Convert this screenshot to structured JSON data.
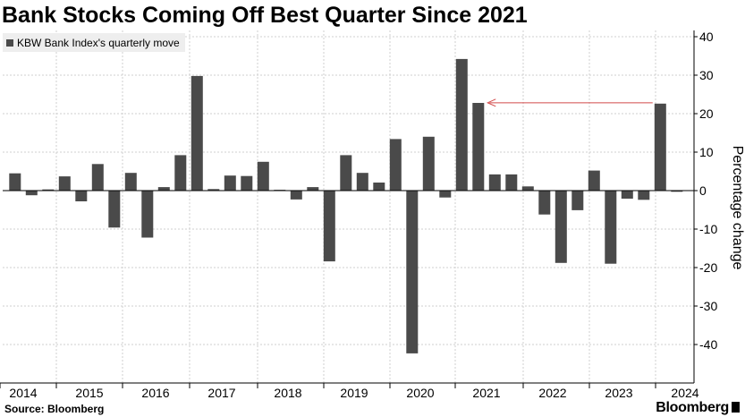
{
  "title": "Bank Stocks Coming Off Best Quarter Since 2021",
  "source": "Source: Bloomberg",
  "brand": "Bloomberg",
  "colors": {
    "bar": "#4a4a4a",
    "grid": "#cfcfcf",
    "axis": "#000000",
    "annotation_arrow": "#d24a4a",
    "legend_bg": "#eeeeee"
  },
  "chart_data": {
    "type": "bar",
    "ylabel": "Percentage change",
    "y_axis_side": "right",
    "ylim": [
      -45,
      42
    ],
    "yticks": [
      40,
      30,
      20,
      10,
      0,
      -10,
      -20,
      -30,
      -40
    ],
    "grid": true,
    "legend_position": "top-left",
    "year_labels": [
      "2014",
      "2015",
      "2016",
      "2017",
      "2018",
      "2019",
      "2020",
      "2021",
      "2022",
      "2023",
      "2024"
    ],
    "series": [
      {
        "name": "KBW Bank Index's quarterly move",
        "values": [
          4.5,
          -1.2,
          0.3,
          3.7,
          -2.8,
          6.9,
          -9.6,
          4.6,
          -12.2,
          0.9,
          9.2,
          29.8,
          0.4,
          3.9,
          3.8,
          7.5,
          0.2,
          -2.3,
          0.9,
          -18.4,
          9.2,
          4.6,
          2.1,
          13.4,
          -42.3,
          14.0,
          -1.8,
          34.2,
          22.8,
          4.2,
          4.2,
          1.1,
          -6.2,
          -18.8,
          -5.1,
          5.2,
          -19.0,
          -2.1,
          -2.4,
          22.6,
          -0.3
        ]
      }
    ],
    "annotation": {
      "type": "arrow",
      "from_value": 22.6,
      "to_value": 22.8,
      "description": "arrow from latest quarter back to 2021 level"
    }
  }
}
